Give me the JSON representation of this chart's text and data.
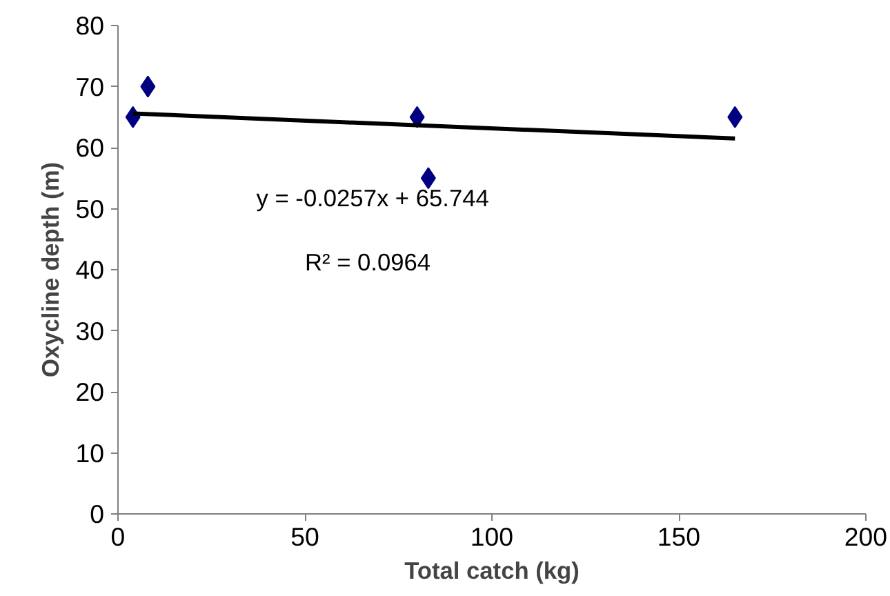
{
  "chart_data": {
    "type": "scatter",
    "xlabel": "Total catch (kg)",
    "ylabel": "Oxycline depth (m)",
    "xlim": [
      0,
      200
    ],
    "xticks": [
      0,
      50,
      100,
      150,
      200
    ],
    "ylim": [
      0,
      80
    ],
    "yticks": [
      0,
      10,
      20,
      30,
      40,
      50,
      60,
      70,
      80
    ],
    "grid": false,
    "marker": "diamond",
    "series": [
      {
        "color": "#000080",
        "x": [
          4,
          8,
          80,
          83,
          165
        ],
        "values": [
          65,
          70,
          65,
          55,
          65
        ]
      },
      {
        "type": "line",
        "marker": "none",
        "color": "#000000",
        "x": [
          4,
          165
        ],
        "values": [
          65.6,
          61.5
        ]
      }
    ],
    "annotations": [
      "y = -0.0257x + 65.744",
      "R² = 0.0964"
    ]
  }
}
